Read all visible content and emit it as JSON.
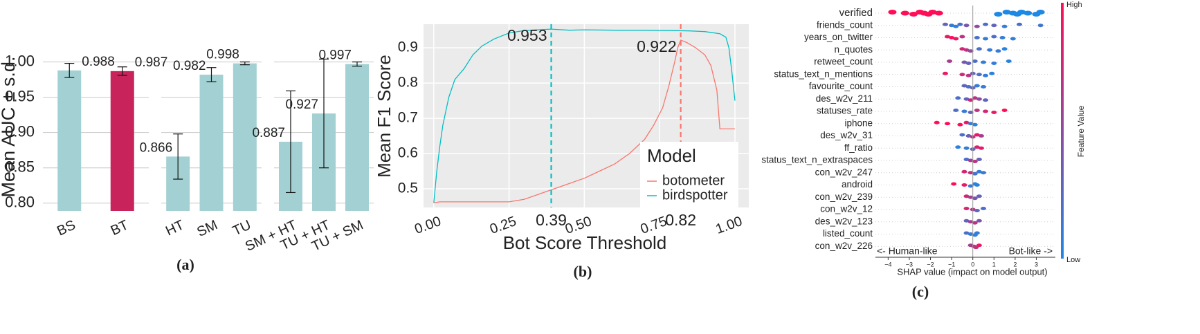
{
  "chart_data": [
    {
      "type": "bar",
      "caption": "(a)",
      "ylabel": "Mean AUC ± s.d.",
      "ylim": [
        0.789,
        1.027
      ],
      "yticks": [
        {
          "value": 0.8,
          "label": "0.80"
        },
        {
          "value": 0.85,
          "label": "0.85"
        },
        {
          "value": 0.9,
          "label": "0.90"
        },
        {
          "value": 0.95,
          "label": "0.95"
        },
        {
          "value": 1.0,
          "label": "1.00"
        }
      ],
      "grid": true,
      "panels": [
        {
          "categories": [
            "BS",
            "BT"
          ],
          "values": [
            0.988,
            0.987
          ],
          "errors": [
            0.01,
            0.006
          ],
          "colors": [
            "#a3d1d3",
            "#c8235a"
          ]
        },
        {
          "categories": [
            "HT",
            "SM",
            "TU"
          ],
          "values": [
            0.866,
            0.982,
            0.998
          ],
          "errors": [
            0.032,
            0.01,
            0.002
          ],
          "colors": [
            "#a3d1d3",
            "#a3d1d3",
            "#a3d1d3"
          ]
        },
        {
          "categories": [
            "SM + HT",
            "TU + HT",
            "TU + SM"
          ],
          "values": [
            0.887,
            0.927,
            0.997
          ],
          "errors": [
            0.072,
            0.077,
            0.003
          ],
          "colors": [
            "#a3d1d3",
            "#a3d1d3",
            "#a3d1d3"
          ]
        }
      ]
    },
    {
      "type": "line",
      "caption": "(b)",
      "xlabel": "Bot Score Threshold",
      "ylabel": "Mean F1 Score",
      "xlim": [
        -0.034,
        1.046
      ],
      "ylim": [
        0.447,
        0.967
      ],
      "xticks": [
        {
          "value": 0,
          "label": "0.00"
        },
        0.25,
        {
          "value": 0.5,
          "label": "0.50"
        },
        0.75,
        {
          "value": 1,
          "label": "1.00"
        }
      ],
      "yticks": [
        0.5,
        0.6,
        0.7,
        0.8,
        0.9
      ],
      "grid": true,
      "legend_title": "Model",
      "legend": "lower right",
      "series": [
        {
          "name": "botometer",
          "color": "#f8766d",
          "x": [
            0,
            0.02,
            0.25,
            0.3,
            0.35,
            0.4,
            0.45,
            0.5,
            0.55,
            0.6,
            0.65,
            0.7,
            0.73,
            0.76,
            0.78,
            0.8,
            0.81,
            0.82,
            0.84,
            0.87,
            0.9,
            0.92,
            0.94,
            0.95,
            0.97,
            1.0
          ],
          "values": [
            0.46,
            0.463,
            0.463,
            0.47,
            0.485,
            0.5,
            0.515,
            0.53,
            0.55,
            0.57,
            0.6,
            0.64,
            0.68,
            0.73,
            0.79,
            0.86,
            0.9,
            0.922,
            0.915,
            0.9,
            0.88,
            0.85,
            0.78,
            0.67,
            0.67,
            0.67
          ]
        },
        {
          "name": "birdspotter",
          "color": "#00bfc4",
          "x": [
            0,
            0.01,
            0.02,
            0.03,
            0.05,
            0.07,
            0.1,
            0.13,
            0.16,
            0.2,
            0.25,
            0.3,
            0.39,
            0.45,
            0.5,
            0.6,
            0.7,
            0.8,
            0.85,
            0.9,
            0.95,
            0.97,
            0.98,
            0.99,
            1.0
          ],
          "values": [
            0.46,
            0.55,
            0.62,
            0.68,
            0.76,
            0.81,
            0.84,
            0.88,
            0.905,
            0.925,
            0.942,
            0.949,
            0.953,
            0.95,
            0.951,
            0.95,
            0.95,
            0.949,
            0.948,
            0.946,
            0.94,
            0.93,
            0.9,
            0.83,
            0.75
          ]
        }
      ],
      "thresholds": [
        {
          "x": 0.39,
          "peak": 0.953,
          "color": "#00bfc4"
        },
        {
          "x": 0.82,
          "peak": 0.922,
          "color": "#f8766d"
        }
      ]
    },
    {
      "type": "beeswarm",
      "caption": "(c)",
      "xlabel": "SHAP value (impact on model output)",
      "xlim": [
        -4.6,
        3.9
      ],
      "xticks": [
        {
          "value": -4,
          "label": "−4"
        },
        {
          "value": -3,
          "label": "−3"
        },
        {
          "value": -2,
          "label": "−2"
        },
        {
          "value": -1,
          "label": "−1"
        },
        0,
        1,
        2,
        3
      ],
      "annotations": [
        "<- Human-like",
        "Bot-like ->"
      ],
      "colorbar": {
        "label": "Feature Value",
        "high": "High",
        "low": "Low",
        "colors": [
          "#1e88e5",
          "#ff0d57"
        ]
      },
      "features": [
        {
          "name": "verified",
          "shap": [
            -3.8,
            -3.2,
            -2.8,
            -2.5,
            -2.3,
            -2.1,
            -1.9,
            -1.6,
            1.2,
            1.6,
            1.9,
            2.1,
            2.3,
            2.6,
            3.0,
            3.2
          ],
          "feature_value": [
            1,
            1,
            1,
            1,
            1,
            1,
            1,
            1,
            0,
            0,
            0,
            0,
            0,
            0,
            0,
            0
          ]
        },
        {
          "name": "friends_count",
          "shap": [
            -1.3,
            -1.0,
            -0.8,
            -0.6,
            -0.3,
            0.2,
            0.6,
            1.0,
            1.5,
            2.2,
            3.2
          ],
          "feature_value": [
            0.3,
            0.1,
            0.05,
            0.2,
            0.4,
            0.5,
            0.2,
            0.3,
            0.1,
            0.2,
            0.15
          ]
        },
        {
          "name": "years_on_twitter",
          "shap": [
            -1.2,
            -1.0,
            -0.8,
            -0.5,
            0.2,
            0.6,
            1.0,
            1.4,
            1.9
          ],
          "feature_value": [
            0.9,
            1,
            0.9,
            0.7,
            0.2,
            0.1,
            0.2,
            0.1,
            0.1
          ]
        },
        {
          "name": "n_quotes",
          "shap": [
            -0.5,
            -0.3,
            -0.1,
            0.3,
            0.8,
            1.2,
            1.5
          ],
          "feature_value": [
            0.8,
            0.7,
            0.5,
            0.2,
            0.1,
            0.1,
            0.05
          ]
        },
        {
          "name": "retweet_count",
          "shap": [
            -1.1,
            -0.4,
            -0.2,
            0.1,
            0.5,
            1.0,
            1.7
          ],
          "feature_value": [
            0.6,
            0.4,
            0.3,
            0.2,
            0.1,
            0.1,
            0.05
          ]
        },
        {
          "name": "status_text_n_mentions",
          "shap": [
            -1.3,
            -0.5,
            -0.2,
            0,
            0.3,
            0.6,
            0.9
          ],
          "feature_value": [
            0.9,
            0.8,
            0.7,
            0.3,
            0.2,
            0.1,
            0.05
          ]
        },
        {
          "name": "favourite_count",
          "shap": [
            -0.4,
            -0.2,
            0,
            0.2,
            0.5
          ],
          "feature_value": [
            0.3,
            0.2,
            0.3,
            0.1,
            0.1
          ]
        },
        {
          "name": "des_w2v_211",
          "shap": [
            -0.7,
            -0.3,
            -0.1,
            0.1,
            0.3,
            0.6
          ],
          "feature_value": [
            0.2,
            0.3,
            0.8,
            0.7,
            0.5,
            0.3
          ]
        },
        {
          "name": "statuses_rate",
          "shap": [
            -0.8,
            -0.4,
            -0.1,
            0.2,
            0.6,
            1.0,
            1.5
          ],
          "feature_value": [
            0.2,
            0.1,
            0.3,
            0.7,
            0.8,
            0.9,
            1
          ]
        },
        {
          "name": "iphone",
          "shap": [
            -1.7,
            -1.2,
            -0.6,
            -0.3,
            -0.1,
            0.1
          ],
          "feature_value": [
            1,
            1,
            1,
            0.9,
            0.1,
            0.05
          ]
        },
        {
          "name": "des_w2v_31",
          "shap": [
            -0.5,
            -0.2,
            0,
            0.2,
            0.4
          ],
          "feature_value": [
            0.2,
            0.3,
            0.7,
            0.9,
            0.6
          ]
        },
        {
          "name": "ff_ratio",
          "shap": [
            -0.7,
            -0.3,
            0,
            0.2,
            0.4
          ],
          "feature_value": [
            0.05,
            0.1,
            0.3,
            0.8,
            0.9
          ]
        },
        {
          "name": "status_text_n_extraspaces",
          "shap": [
            -0.3,
            -0.1,
            0.1,
            0.3
          ],
          "feature_value": [
            0.2,
            0.6,
            0.7,
            0.3
          ]
        },
        {
          "name": "con_w2v_247",
          "shap": [
            -0.4,
            -0.1,
            0.1,
            0.3,
            0.5
          ],
          "feature_value": [
            0.8,
            0.7,
            0.2,
            0.1,
            0.1
          ]
        },
        {
          "name": "android",
          "shap": [
            -0.9,
            -0.4,
            -0.1,
            0.1,
            0.2
          ],
          "feature_value": [
            1,
            0.9,
            0.1,
            0.05,
            0.05
          ]
        },
        {
          "name": "con_w2v_239",
          "shap": [
            -0.3,
            -0.1,
            0.1,
            0.3
          ],
          "feature_value": [
            0.8,
            0.6,
            0.4,
            0.3
          ]
        },
        {
          "name": "con_w2v_12",
          "shap": [
            -0.3,
            0,
            0.2,
            0.5
          ],
          "feature_value": [
            0.8,
            0.7,
            0.3,
            0.2
          ]
        },
        {
          "name": "des_w2v_123",
          "shap": [
            -0.3,
            -0.1,
            0.1,
            0.3
          ],
          "feature_value": [
            0.3,
            0.6,
            0.7,
            0.4
          ]
        },
        {
          "name": "listed_count",
          "shap": [
            -0.3,
            -0.1,
            0.1,
            0.2
          ],
          "feature_value": [
            0.2,
            0.1,
            0.05,
            0.1
          ]
        },
        {
          "name": "con_w2v_226",
          "shap": [
            -0.1,
            0.05,
            0.15,
            0.3
          ],
          "feature_value": [
            0.6,
            0.8,
            0.7,
            0.9
          ]
        }
      ]
    }
  ]
}
